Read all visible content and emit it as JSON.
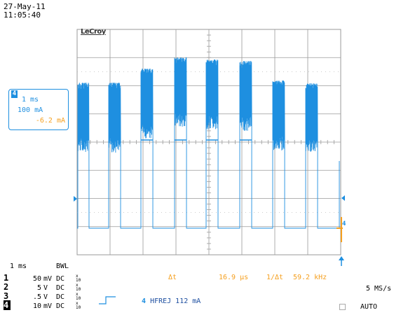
{
  "timestamp": {
    "date": "27-May-11",
    "time": "11:05:40"
  },
  "brand": "LeCroy",
  "channel_box": {
    "channel_number": "4",
    "timebase": "1 ms",
    "scale": "100 mA",
    "offset": "-6.2 mA"
  },
  "bottom": {
    "timebase": "1 ms",
    "bwl": "BWL",
    "channels": [
      {
        "num": "1",
        "value": "50",
        "unit": "mV",
        "coupling": "DC"
      },
      {
        "num": "2",
        "value": "5",
        "unit": "V",
        "coupling": "DC"
      },
      {
        "num": "3",
        "value": ".5",
        "unit": "V",
        "coupling": "DC"
      },
      {
        "num": "4",
        "value": "10",
        "unit": "mV",
        "coupling": "DC"
      }
    ],
    "coupling_suffix_top": "x",
    "coupling_suffix_bottom": "10",
    "measurement": {
      "delta_t_label": "Δt",
      "delta_t_value": "16.9 µs",
      "inv_label": "1/Δt",
      "inv_value": "59.2 kHz"
    },
    "sample_rate": "5 MS/s",
    "trigger": {
      "channel": "4",
      "text": "HFREJ 112 mA"
    },
    "mode": "AUTO"
  },
  "colors": {
    "trace": "#1e8fe0",
    "cursor": "#f5a020",
    "grid": "#9a9a9a"
  },
  "icons": [
    "trigger-level-arrow-icon",
    "ground-marker-icon",
    "trigger-position-arrow-icon",
    "trigger-edge-icon"
  ]
}
